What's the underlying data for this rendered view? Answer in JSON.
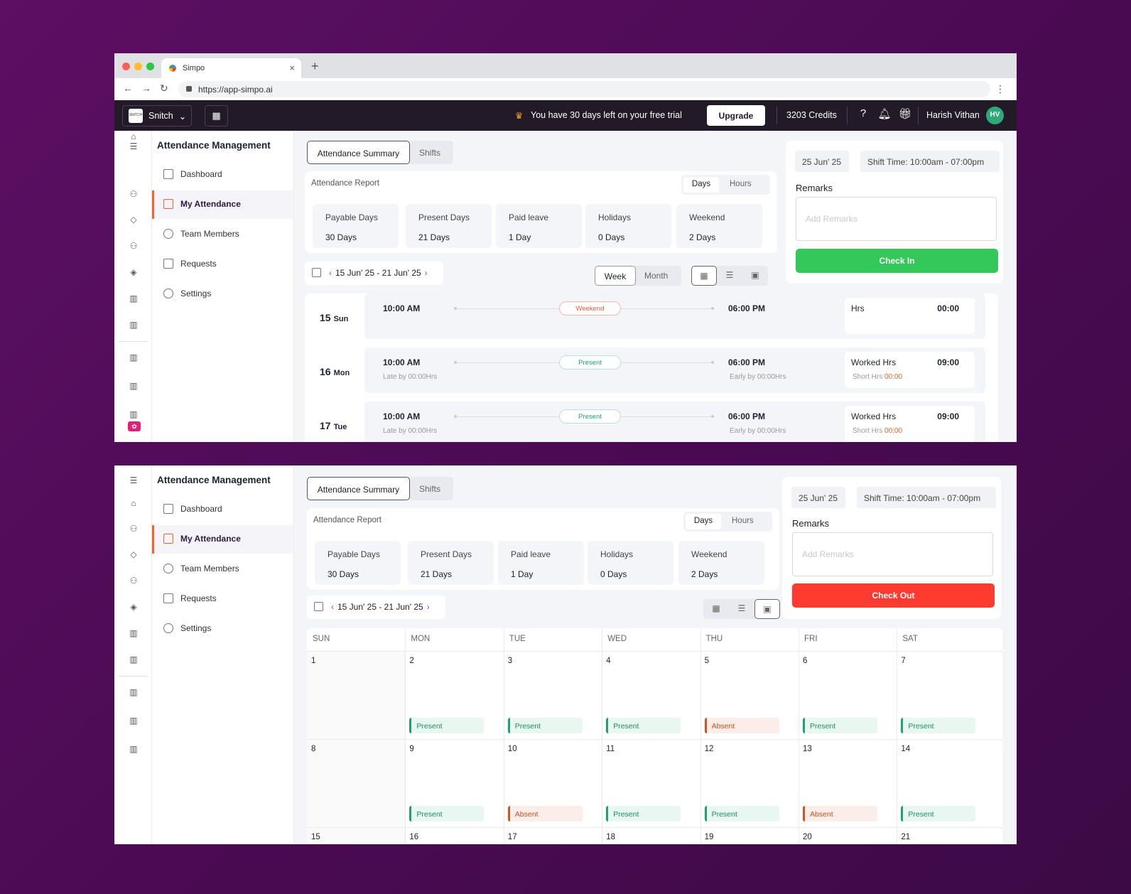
{
  "browser": {
    "tab_title": "Simpo",
    "url": "https://app-simpo.ai"
  },
  "topbar": {
    "workspace": "Snitch",
    "workspace_logo_text": "SNITCH",
    "trial_text": "You have 30 days left on your free trial",
    "upgrade_label": "Upgrade",
    "credits": "3203 Credits",
    "user_name": "Harish Vithan",
    "user_initials": "HV"
  },
  "sidebar": {
    "title": "Attendance Management",
    "items": [
      {
        "label": "Dashboard",
        "icon": "grid-icon"
      },
      {
        "label": "My Attendance",
        "icon": "calendar-icon",
        "active": true
      },
      {
        "label": "Team Members",
        "icon": "users-icon"
      },
      {
        "label": "Requests",
        "icon": "requests-icon"
      },
      {
        "label": "Settings",
        "icon": "gear-icon"
      }
    ]
  },
  "tabs": {
    "summary": "Attendance Summary",
    "shifts": "Shifts"
  },
  "report": {
    "title": "Attendance Report",
    "toggle_days": "Days",
    "toggle_hours": "Hours",
    "stats": [
      {
        "label": "Payable Days",
        "value": "30 Days"
      },
      {
        "label": "Present Days",
        "value": "21 Days"
      },
      {
        "label": "Paid leave",
        "value": "1 Day"
      },
      {
        "label": "Holidays",
        "value": "0 Days"
      },
      {
        "label": "Weekend",
        "value": "2 Days"
      }
    ]
  },
  "range": {
    "label": "15 Jun' 25 - 21 Jun' 25"
  },
  "view": {
    "week": "Week",
    "month": "Month"
  },
  "right_panel": {
    "date": "25 Jun' 25",
    "shift_time": "Shift Time: 10:00am - 07:00pm",
    "remarks_label": "Remarks",
    "remarks_placeholder": "Add Remarks",
    "check_in": "Check In",
    "check_out": "Check Out",
    "colors": {
      "check_in": "#34c759",
      "check_out": "#ff3b30"
    }
  },
  "week_days": [
    {
      "num": "15",
      "dow": "Sun",
      "in": "10:00 AM",
      "out": "06:00 PM",
      "status": "Weekend",
      "hrs_label": "Hrs",
      "hrs": "00:00"
    },
    {
      "num": "16",
      "dow": "Mon",
      "in": "10:00 AM",
      "out": "06:00 PM",
      "status": "Present",
      "late": "Late by 00:00Hrs",
      "early": "Early by 00:00Hrs",
      "hrs_label": "Worked Hrs",
      "hrs": "09:00",
      "short_label": "Short Hrs",
      "short": "00:00"
    },
    {
      "num": "17",
      "dow": "Tue",
      "in": "10:00 AM",
      "out": "06:00 PM",
      "status": "Present",
      "late": "Late by 00:00Hrs",
      "early": "Early by 00:00Hrs",
      "hrs_label": "Worked Hrs",
      "hrs": "09:00",
      "short_label": "Short Hrs",
      "short": "00:00"
    }
  ],
  "calendar": {
    "headers": [
      "SUN",
      "MON",
      "TUE",
      "WED",
      "THU",
      "FRI",
      "SAT"
    ],
    "weeks": [
      [
        {
          "d": "1"
        },
        {
          "d": "2",
          "s": "Present"
        },
        {
          "d": "3",
          "s": "Present"
        },
        {
          "d": "4",
          "s": "Present"
        },
        {
          "d": "5",
          "s": "Absent"
        },
        {
          "d": "6",
          "s": "Present"
        },
        {
          "d": "7",
          "s": "Present"
        }
      ],
      [
        {
          "d": "8"
        },
        {
          "d": "9",
          "s": "Present"
        },
        {
          "d": "10",
          "s": "Absent"
        },
        {
          "d": "11",
          "s": "Present"
        },
        {
          "d": "12",
          "s": "Present"
        },
        {
          "d": "13",
          "s": "Absent"
        },
        {
          "d": "14",
          "s": "Present"
        }
      ],
      [
        {
          "d": "15"
        },
        {
          "d": "16"
        },
        {
          "d": "17"
        },
        {
          "d": "18"
        },
        {
          "d": "19"
        },
        {
          "d": "20"
        },
        {
          "d": "21"
        }
      ]
    ]
  }
}
